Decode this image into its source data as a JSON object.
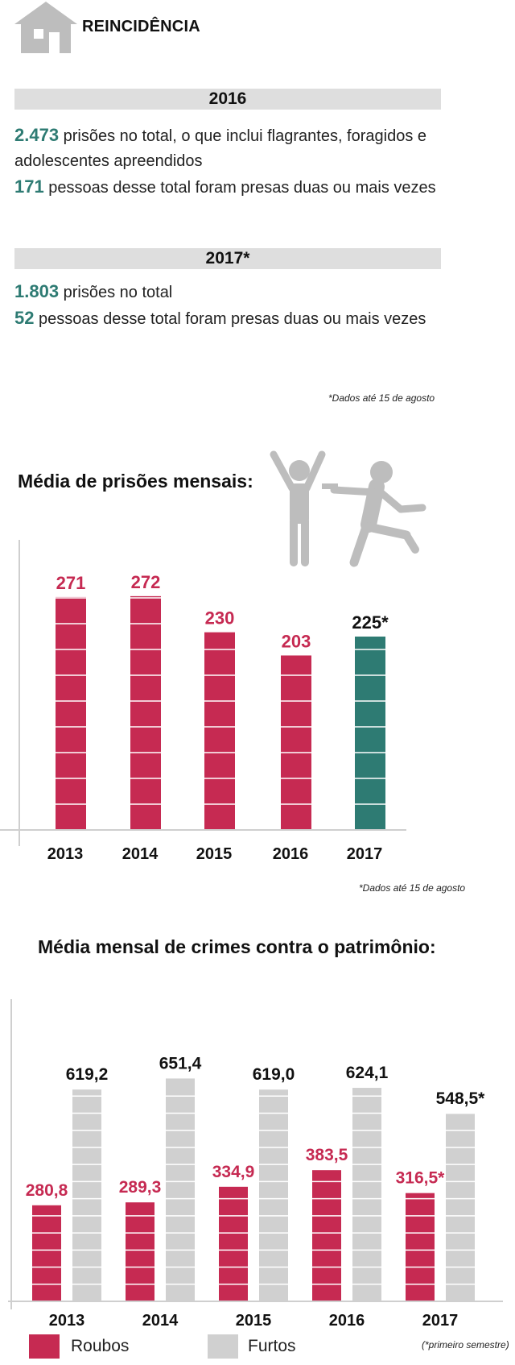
{
  "header": {
    "title": "REINCIDÊNCIA",
    "icon": "house-icon"
  },
  "sections": [
    {
      "year_label": "2016",
      "lines": [
        {
          "number": "2.473",
          "text": " prisões no total, o que inclui flagrantes, foragidos e adolescentes apreendidos"
        },
        {
          "number": "171",
          "text": " pessoas desse total foram presas duas ou mais vezes"
        }
      ]
    },
    {
      "year_label": "2017*",
      "lines": [
        {
          "number": "1.803",
          "text": " prisões no total"
        },
        {
          "number": "52",
          "text": " pessoas desse total foram presas duas ou mais vezes"
        }
      ]
    }
  ],
  "note_1": "*Dados até 15 de agosto",
  "note_2": "*Dados até 15 de agosto",
  "note_3": "(*primeiro semestre)",
  "illustration": {
    "icon": "arrest-scene-icon"
  },
  "colors": {
    "accent_red": "#c62a52",
    "accent_teal": "#2e7b73",
    "gray_bar": "#d0d0d0",
    "band_gray": "#dedede"
  },
  "legend": [
    {
      "label": "Roubos",
      "color": "#c62a52"
    },
    {
      "label": "Furtos",
      "color": "#d0d0d0"
    }
  ],
  "chart_data": [
    {
      "type": "bar",
      "title": "Média de prisões mensais:",
      "categories": [
        "2013",
        "2014",
        "2015",
        "2016",
        "2017"
      ],
      "values": [
        271,
        272,
        230,
        203,
        225
      ],
      "value_labels": [
        "271",
        "272",
        "230",
        "203",
        "225*"
      ],
      "bar_colors": [
        "#c62a52",
        "#c62a52",
        "#c62a52",
        "#c62a52",
        "#2e7b73"
      ],
      "label_colors": [
        "#c62a52",
        "#c62a52",
        "#c62a52",
        "#c62a52",
        "#111111"
      ],
      "ylim": [
        0,
        300
      ],
      "grid": true
    },
    {
      "type": "bar",
      "title": "Média mensal de crimes contra o patrimônio:",
      "categories": [
        "2013",
        "2014",
        "2015",
        "2016",
        "2017"
      ],
      "series": [
        {
          "name": "Roubos",
          "values": [
            280.8,
            289.3,
            334.9,
            383.5,
            316.5
          ],
          "labels": [
            "280,8",
            "289,3",
            "334,9",
            "383,5",
            "316,5*"
          ],
          "color": "#c62a52"
        },
        {
          "name": "Furtos",
          "values": [
            619.2,
            651.4,
            619.0,
            624.1,
            548.5
          ],
          "labels": [
            "619,2",
            "651,4",
            "619,0",
            "624,1",
            "548,5*"
          ],
          "color": "#d0d0d0"
        }
      ],
      "ylim": [
        0,
        700
      ],
      "grid": true,
      "legend_position": "bottom-left"
    }
  ]
}
